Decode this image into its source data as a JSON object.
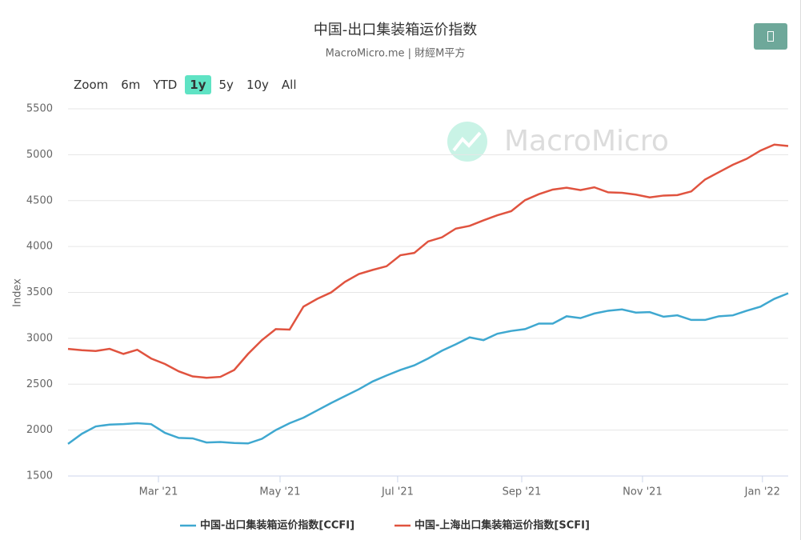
{
  "chart_data": {
    "type": "line",
    "title": "中国-出口集装箱运价指数",
    "subtitle": "MacroMicro.me | 財經M平方",
    "watermark": "MacroMicro",
    "range_selector": {
      "label": "Zoom",
      "buttons": [
        "6m",
        "YTD",
        "1y",
        "5y",
        "10y",
        "All"
      ],
      "selected": 2
    },
    "y_label": "Index",
    "xlim": [
      0,
      52
    ],
    "xticks": [
      {
        "value": 6.53,
        "label": "Mar '21"
      },
      {
        "value": 15.31,
        "label": "May '21"
      },
      {
        "value": 23.8,
        "label": "Jul '21"
      },
      {
        "value": 32.76,
        "label": "Sep '21"
      },
      {
        "value": 41.48,
        "label": "Nov '21"
      },
      {
        "value": 50.14,
        "label": "Jan '22"
      }
    ],
    "ylim": [
      1500,
      5500
    ],
    "yticks": [
      1500,
      2000,
      2500,
      3000,
      3500,
      4000,
      4500,
      5000,
      5500
    ],
    "grid": true,
    "legend": "bottom",
    "series": [
      {
        "name": "中国-出口集装箱运价指数[CCFI]",
        "color": "#3fa8d0",
        "values": [
          1850,
          1960,
          2040,
          2060,
          2065,
          2075,
          2065,
          1970,
          1915,
          1910,
          1865,
          1870,
          1860,
          1855,
          1905,
          2000,
          2075,
          2135,
          2215,
          2295,
          2370,
          2445,
          2530,
          2595,
          2655,
          2705,
          2780,
          2865,
          2935,
          3010,
          2980,
          3050,
          3080,
          3100,
          3160,
          3160,
          3240,
          3220,
          3270,
          3300,
          3315,
          3280,
          3285,
          3235,
          3250,
          3200,
          3200,
          3240,
          3250,
          3300,
          3345,
          3430,
          3490
        ]
      },
      {
        "name": "中国-上海出口集装箱运价指数[SCFI]",
        "color": "#e0533f",
        "values": [
          2885,
          2870,
          2862,
          2885,
          2830,
          2875,
          2780,
          2720,
          2640,
          2585,
          2570,
          2580,
          2655,
          2830,
          2980,
          3100,
          3095,
          3345,
          3430,
          3500,
          3615,
          3700,
          3745,
          3785,
          3905,
          3930,
          4055,
          4100,
          4195,
          4225,
          4285,
          4340,
          4385,
          4505,
          4570,
          4620,
          4640,
          4615,
          4645,
          4590,
          4585,
          4565,
          4535,
          4555,
          4560,
          4600,
          4730,
          4810,
          4890,
          4955,
          5045,
          5110,
          5095
        ]
      }
    ]
  }
}
